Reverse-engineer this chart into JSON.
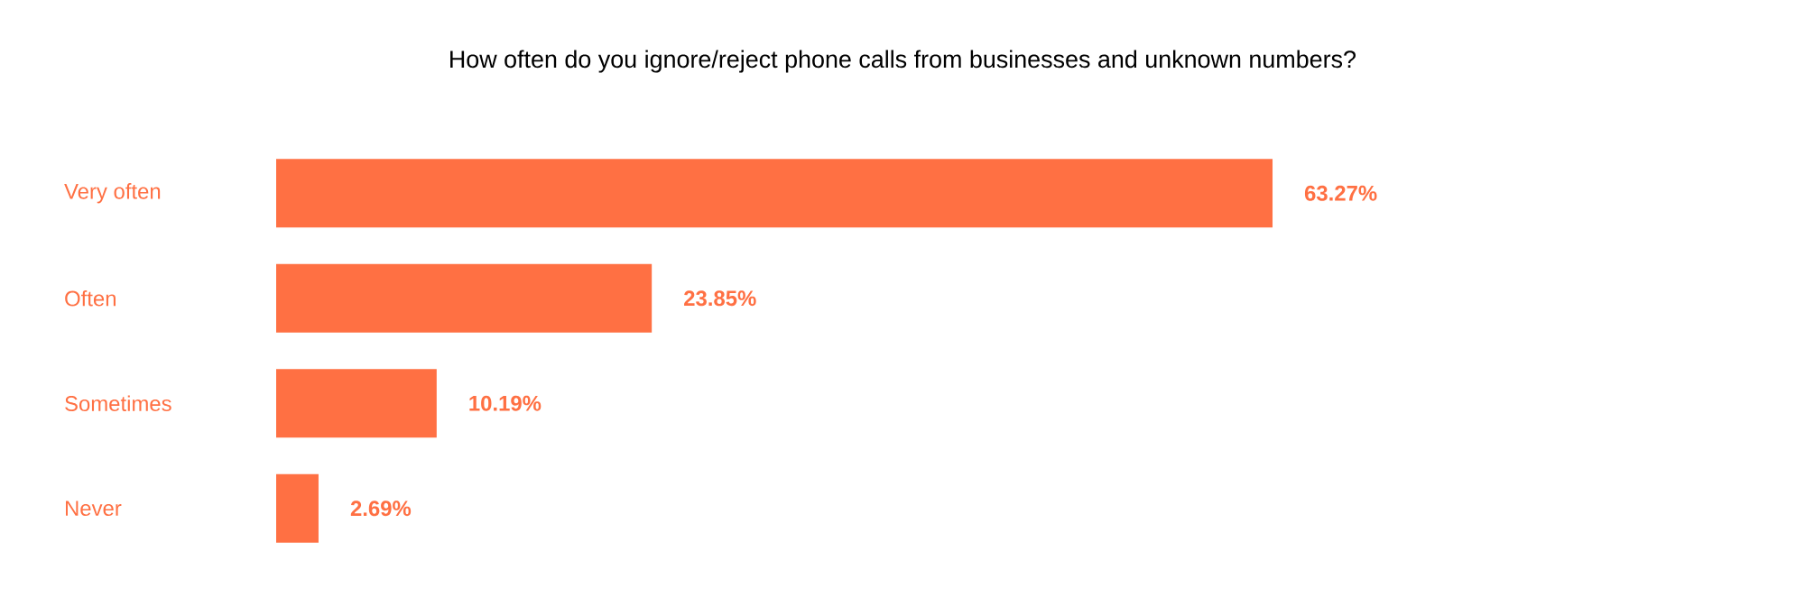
{
  "chart_data": {
    "type": "bar",
    "orientation": "horizontal",
    "title": "How often do you ignore/reject phone calls from businesses and unknown numbers?",
    "categories": [
      "Very often",
      "Often",
      "Sometimes",
      "Never"
    ],
    "values": [
      63.27,
      23.85,
      10.19,
      2.69
    ],
    "value_labels": [
      "63.27%",
      "23.85%",
      "10.19%",
      "2.69%"
    ],
    "color": "#ff7043"
  }
}
